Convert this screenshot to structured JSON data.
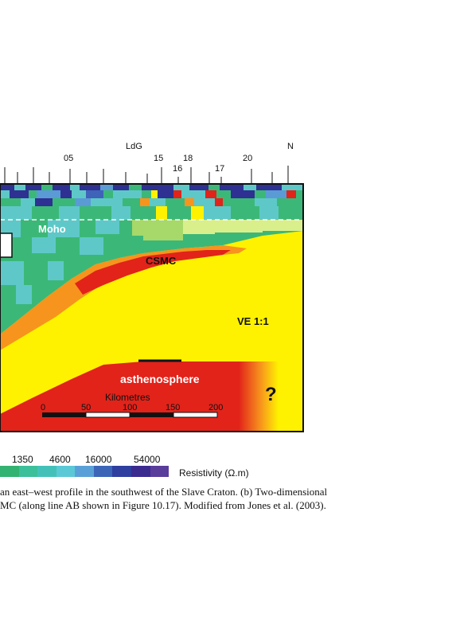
{
  "profile": {
    "station_labels": {
      "ldg": "LdG",
      "north": "N",
      "s05": "05",
      "s15": "15",
      "s18": "18",
      "s16": "16",
      "s17": "17",
      "s20": "20"
    },
    "labels": {
      "moho": "Moho",
      "csmc": "CSMC",
      "ve": "VE 1:1",
      "asthenosphere": "asthenosphere",
      "question": "?"
    },
    "scale_bar": {
      "title": "Kilometres",
      "ticks": [
        "0",
        "50",
        "100",
        "150",
        "200"
      ]
    },
    "colors": {
      "yellow": "#fff200",
      "orange": "#f7941d",
      "red": "#e2231a",
      "dark_blue": "#2e3192",
      "cyan": "#5ec8c8",
      "green": "#3bb878"
    }
  },
  "colorbar": {
    "values": [
      "1350",
      "4600",
      "16000",
      "54000"
    ],
    "unit_label": "Resistivity (Ω.m)",
    "colors": [
      "#33b371",
      "#3cbf9b",
      "#43c1b9",
      "#5bc8d6",
      "#5aa0d8",
      "#3b66b8",
      "#2e3fa0",
      "#3b2b8f",
      "#5a3c9b"
    ]
  },
  "caption": {
    "line1": "an east–west profile in the southwest of the Slave Craton. (b) Two-dimensional",
    "line2": "MC (along line AB shown in Figure 10.17). Modified from Jones et al. (2003)."
  }
}
